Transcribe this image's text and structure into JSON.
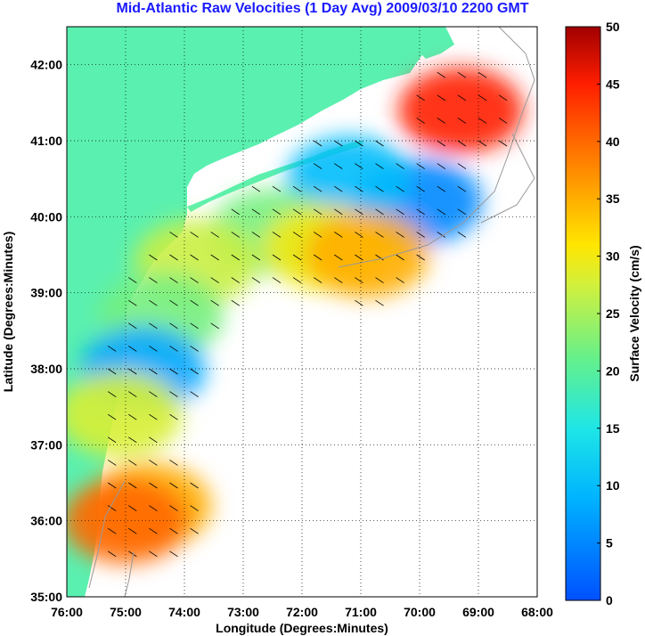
{
  "title": "Mid-Atlantic Raw Velocities (1 Day Avg) 2009/03/10 2200 GMT",
  "xlabel": "Longitude (Degrees:Minutes)",
  "ylabel": "Latitude (Degrees:Minutes)",
  "x_ticks": [
    "76:00",
    "75:00",
    "74:00",
    "73:00",
    "72:00",
    "71:00",
    "70:00",
    "69:00",
    "68:00"
  ],
  "y_ticks": [
    "35:00",
    "36:00",
    "37:00",
    "38:00",
    "39:00",
    "40:00",
    "41:00",
    "42:00"
  ],
  "colorbar": {
    "label": "Surface Velocity (cm/s)",
    "ticks": [
      "0",
      "5",
      "10",
      "15",
      "20",
      "25",
      "30",
      "35",
      "40",
      "45",
      "50"
    ],
    "range": [
      0,
      50
    ]
  },
  "colors": {
    "title": "#1a1aff",
    "land": "#5af0b0",
    "coast_contour": "#999999",
    "grid": "#000000"
  },
  "chart_data": {
    "type": "heatmap",
    "xlim": [
      -76,
      -68
    ],
    "ylim": [
      35,
      42.5
    ],
    "grid": "dotted",
    "colorscale": "jet",
    "value_range": [
      0,
      50
    ],
    "regions": [
      {
        "lon": -69.3,
        "lat": 41.4,
        "speed": 45
      },
      {
        "lon": -70.0,
        "lat": 40.2,
        "speed": 5
      },
      {
        "lon": -71.2,
        "lat": 40.5,
        "speed": 10
      },
      {
        "lon": -72.5,
        "lat": 39.8,
        "speed": 22
      },
      {
        "lon": -71.6,
        "lat": 39.6,
        "speed": 30
      },
      {
        "lon": -70.9,
        "lat": 39.5,
        "speed": 35
      },
      {
        "lon": -73.8,
        "lat": 39.4,
        "speed": 27
      },
      {
        "lon": -74.4,
        "lat": 38.7,
        "speed": 22
      },
      {
        "lon": -74.7,
        "lat": 38.0,
        "speed": 8
      },
      {
        "lon": -75.1,
        "lat": 37.4,
        "speed": 28
      },
      {
        "lon": -74.6,
        "lat": 36.2,
        "speed": 35
      },
      {
        "lon": -75.0,
        "lat": 36.0,
        "speed": 40
      }
    ]
  }
}
